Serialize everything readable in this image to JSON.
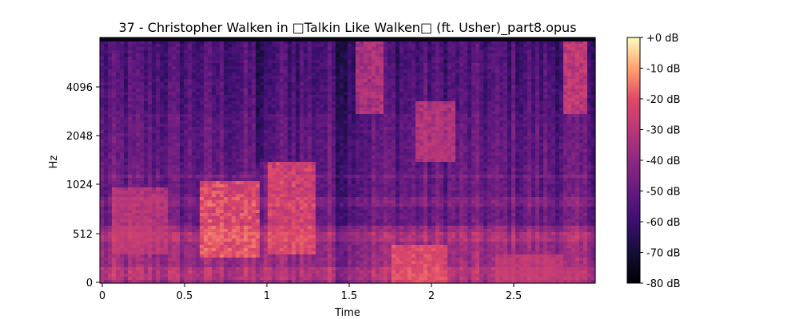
{
  "chart_data": {
    "type": "heatmap",
    "title": "37 - Christopher Walken in □Talkin Like Walken□ (ft. Usher)_part8.opus",
    "xlabel": "Time",
    "ylabel": "Hz",
    "x_ticks": [
      0,
      0.5,
      1,
      1.5,
      2,
      2.5
    ],
    "x_tick_labels": [
      "0",
      "0.5",
      "1",
      "1.5",
      "2",
      "2.5"
    ],
    "xlim": [
      0,
      3.0
    ],
    "y_scale": "log2-like (mel/symlog)",
    "y_ticks": [
      0,
      512,
      1024,
      2048,
      4096
    ],
    "y_tick_labels": [
      "0",
      "512",
      "1024",
      "2048",
      "4096"
    ],
    "colorbar": {
      "range_db": [
        -80,
        0
      ],
      "tick_labels": [
        "+0 dB",
        "-10 dB",
        "-20 dB",
        "-30 dB",
        "-40 dB",
        "-50 dB",
        "-60 dB",
        "-70 dB",
        "-80 dB"
      ],
      "colormap": "magma"
    },
    "energy_regions": [
      {
        "t_start": 0.05,
        "t_end": 0.4,
        "f_low": 300,
        "f_high": 1000,
        "level_db": -25
      },
      {
        "t_start": 0.6,
        "t_end": 0.95,
        "f_low": 250,
        "f_high": 1100,
        "level_db": -12
      },
      {
        "t_start": 1.0,
        "t_end": 1.3,
        "f_low": 300,
        "f_high": 1500,
        "level_db": -15
      },
      {
        "t_start": 1.55,
        "t_end": 1.7,
        "f_low": 3000,
        "f_high": 8000,
        "level_db": -25
      },
      {
        "t_start": 1.75,
        "t_end": 2.1,
        "f_low": 0,
        "f_high": 400,
        "level_db": -15
      },
      {
        "t_start": 1.9,
        "t_end": 2.15,
        "f_low": 1500,
        "f_high": 3500,
        "level_db": -25
      },
      {
        "t_start": 2.4,
        "t_end": 2.8,
        "f_low": 0,
        "f_high": 300,
        "level_db": -25
      },
      {
        "t_start": 2.8,
        "t_end": 2.95,
        "f_low": 3000,
        "f_high": 8000,
        "level_db": -20
      }
    ]
  }
}
